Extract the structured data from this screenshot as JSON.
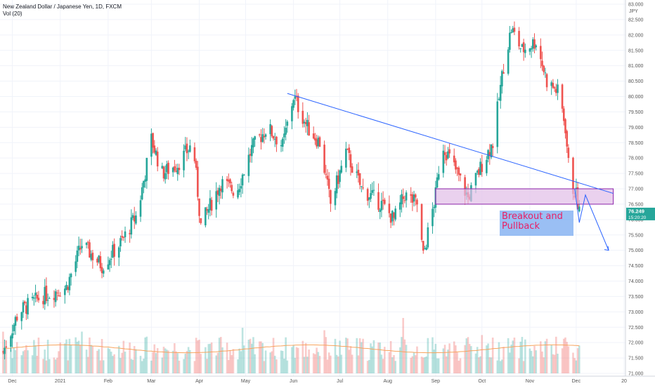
{
  "header": {
    "symbol": "New Zealand Dollar / Japanese Yen, 1D, FXCM",
    "volume_label": "Vol (20)"
  },
  "price_axis": {
    "currency": "JPY",
    "last_price": "76.249",
    "countdown": "15:20:20"
  },
  "annotation": {
    "text": "Breakout and Pullback"
  },
  "colors": {
    "up": "#26a69a",
    "down": "#ef5350",
    "trendline": "#2962ff",
    "zone_fill": "#e1bee7",
    "zone_border": "#8e24aa",
    "note_text": "#e91e63",
    "volume_ma": "#f7a35c"
  },
  "chart_data": {
    "type": "candlestick",
    "title": "New Zealand Dollar / Japanese Yen, 1D, FXCM",
    "y_range": [
      71.0,
      83.0
    ],
    "y_ticks": [
      "71.000",
      "71.500",
      "72.000",
      "72.500",
      "73.000",
      "73.500",
      "74.000",
      "74.500",
      "75.000",
      "75.500",
      "76.000",
      "76.500",
      "77.000",
      "77.500",
      "78.000",
      "78.500",
      "79.000",
      "79.500",
      "80.000",
      "80.500",
      "81.000",
      "81.500",
      "82.000",
      "82.500",
      "83.000"
    ],
    "x_labels": [
      "Dec",
      "2021",
      "Feb",
      "Mar",
      "Apr",
      "May",
      "Jun",
      "Jul",
      "Aug",
      "Sep",
      "Oct",
      "Nov",
      "Dec",
      "20"
    ],
    "approx_close_path": [
      {
        "date": "2020-11-25",
        "close": 71.7
      },
      {
        "date": "2020-12-05",
        "close": 73.0
      },
      {
        "date": "2020-12-20",
        "close": 73.5
      },
      {
        "date": "2021-01-05",
        "close": 73.8
      },
      {
        "date": "2021-01-15",
        "close": 75.2
      },
      {
        "date": "2021-01-28",
        "close": 74.5
      },
      {
        "date": "2021-02-10",
        "close": 75.3
      },
      {
        "date": "2021-02-20",
        "close": 76.2
      },
      {
        "date": "2021-03-01",
        "close": 78.6
      },
      {
        "date": "2021-03-08",
        "close": 77.5
      },
      {
        "date": "2021-03-18",
        "close": 77.8
      },
      {
        "date": "2021-03-28",
        "close": 78.5
      },
      {
        "date": "2021-04-02",
        "close": 75.8
      },
      {
        "date": "2021-04-15",
        "close": 77.2
      },
      {
        "date": "2021-04-25",
        "close": 76.9
      },
      {
        "date": "2021-05-05",
        "close": 78.3
      },
      {
        "date": "2021-05-15",
        "close": 79.0
      },
      {
        "date": "2021-05-25",
        "close": 78.4
      },
      {
        "date": "2021-06-01",
        "close": 80.0
      },
      {
        "date": "2021-06-10",
        "close": 79.0
      },
      {
        "date": "2021-06-18",
        "close": 78.5
      },
      {
        "date": "2021-06-25",
        "close": 76.5
      },
      {
        "date": "2021-07-05",
        "close": 78.2
      },
      {
        "date": "2021-07-15",
        "close": 77.0
      },
      {
        "date": "2021-07-28",
        "close": 76.5
      },
      {
        "date": "2021-08-05",
        "close": 76.0
      },
      {
        "date": "2021-08-12",
        "close": 76.8
      },
      {
        "date": "2021-08-20",
        "close": 76.5
      },
      {
        "date": "2021-08-24",
        "close": 74.8
      },
      {
        "date": "2021-09-01",
        "close": 76.8
      },
      {
        "date": "2021-09-05",
        "close": 78.5
      },
      {
        "date": "2021-09-15",
        "close": 77.5
      },
      {
        "date": "2021-09-22",
        "close": 76.7
      },
      {
        "date": "2021-10-01",
        "close": 77.8
      },
      {
        "date": "2021-10-08",
        "close": 78.5
      },
      {
        "date": "2021-10-15",
        "close": 81.0
      },
      {
        "date": "2021-10-20",
        "close": 82.2
      },
      {
        "date": "2021-10-27",
        "close": 81.5
      },
      {
        "date": "2021-11-05",
        "close": 81.8
      },
      {
        "date": "2021-11-12",
        "close": 80.5
      },
      {
        "date": "2021-11-20",
        "close": 80.1
      },
      {
        "date": "2021-11-24",
        "close": 79.0
      },
      {
        "date": "2021-11-27",
        "close": 77.2
      },
      {
        "date": "2021-12-01",
        "close": 76.8
      },
      {
        "date": "2021-12-03",
        "close": 76.249
      }
    ],
    "trendline": [
      {
        "date": "2021-05-28",
        "price": 80.1
      },
      {
        "date": "2021-12-25",
        "price": 76.85
      }
    ],
    "zone": {
      "from": "2021-09-01",
      "to": "2021-12-25",
      "low": 76.5,
      "high": 77.0
    },
    "projection": [
      {
        "date": "2021-11-30",
        "price": 77.0
      },
      {
        "date": "2021-12-03",
        "price": 75.9
      },
      {
        "date": "2021-12-07",
        "price": 76.8
      },
      {
        "date": "2021-12-22",
        "price": 75.0
      }
    ]
  }
}
